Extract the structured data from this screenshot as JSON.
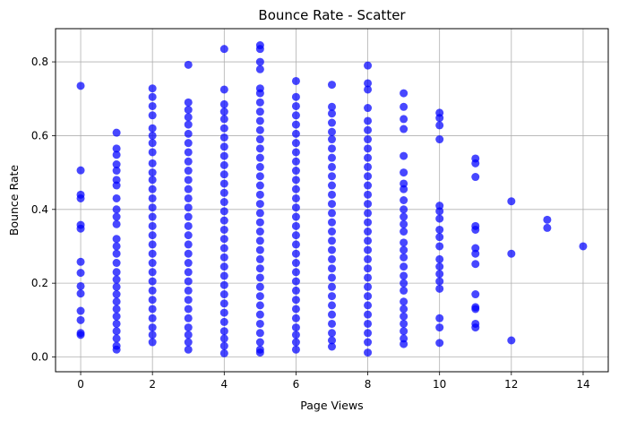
{
  "chart_data": {
    "type": "scatter",
    "title": "Bounce Rate - Scatter",
    "xlabel": "Page Views",
    "ylabel": "Bounce Rate",
    "xlim": [
      -0.7,
      14.7
    ],
    "ylim": [
      -0.04,
      0.89
    ],
    "xticks": [
      0,
      2,
      4,
      6,
      8,
      10,
      12,
      14
    ],
    "yticks": [
      0.0,
      0.2,
      0.4,
      0.6,
      0.8
    ],
    "xtick_labels": [
      "0",
      "2",
      "4",
      "6",
      "8",
      "10",
      "12",
      "14"
    ],
    "ytick_labels": [
      "0.0",
      "0.2",
      "0.4",
      "0.6",
      "0.8"
    ],
    "grid": true,
    "color": "#0000ff",
    "series": [
      {
        "points": [
          [
            0,
            0.735
          ],
          [
            0,
            0.506
          ],
          [
            0,
            0.44
          ],
          [
            0,
            0.43
          ],
          [
            0,
            0.358
          ],
          [
            0,
            0.348
          ],
          [
            0,
            0.258
          ],
          [
            0,
            0.228
          ],
          [
            0,
            0.192
          ],
          [
            0,
            0.172
          ],
          [
            0,
            0.125
          ],
          [
            0,
            0.1
          ],
          [
            0,
            0.065
          ],
          [
            0,
            0.06
          ],
          [
            1,
            0.608
          ],
          [
            1,
            0.565
          ],
          [
            1,
            0.548
          ],
          [
            1,
            0.522
          ],
          [
            1,
            0.505
          ],
          [
            1,
            0.48
          ],
          [
            1,
            0.465
          ],
          [
            1,
            0.43
          ],
          [
            1,
            0.4
          ],
          [
            1,
            0.38
          ],
          [
            1,
            0.36
          ],
          [
            1,
            0.32
          ],
          [
            1,
            0.3
          ],
          [
            1,
            0.28
          ],
          [
            1,
            0.255
          ],
          [
            1,
            0.23
          ],
          [
            1,
            0.21
          ],
          [
            1,
            0.19
          ],
          [
            1,
            0.17
          ],
          [
            1,
            0.15
          ],
          [
            1,
            0.13
          ],
          [
            1,
            0.11
          ],
          [
            1,
            0.09
          ],
          [
            1,
            0.07
          ],
          [
            1,
            0.05
          ],
          [
            1,
            0.03
          ],
          [
            1,
            0.02
          ],
          [
            2,
            0.728
          ],
          [
            2,
            0.705
          ],
          [
            2,
            0.68
          ],
          [
            2,
            0.655
          ],
          [
            2,
            0.62
          ],
          [
            2,
            0.6
          ],
          [
            2,
            0.58
          ],
          [
            2,
            0.555
          ],
          [
            2,
            0.525
          ],
          [
            2,
            0.5
          ],
          [
            2,
            0.48
          ],
          [
            2,
            0.455
          ],
          [
            2,
            0.43
          ],
          [
            2,
            0.405
          ],
          [
            2,
            0.38
          ],
          [
            2,
            0.355
          ],
          [
            2,
            0.33
          ],
          [
            2,
            0.305
          ],
          [
            2,
            0.28
          ],
          [
            2,
            0.255
          ],
          [
            2,
            0.23
          ],
          [
            2,
            0.205
          ],
          [
            2,
            0.18
          ],
          [
            2,
            0.155
          ],
          [
            2,
            0.13
          ],
          [
            2,
            0.105
          ],
          [
            2,
            0.08
          ],
          [
            2,
            0.06
          ],
          [
            2,
            0.04
          ],
          [
            3,
            0.792
          ],
          [
            3,
            0.69
          ],
          [
            3,
            0.67
          ],
          [
            3,
            0.65
          ],
          [
            3,
            0.63
          ],
          [
            3,
            0.605
          ],
          [
            3,
            0.58
          ],
          [
            3,
            0.555
          ],
          [
            3,
            0.53
          ],
          [
            3,
            0.505
          ],
          [
            3,
            0.48
          ],
          [
            3,
            0.455
          ],
          [
            3,
            0.43
          ],
          [
            3,
            0.405
          ],
          [
            3,
            0.38
          ],
          [
            3,
            0.355
          ],
          [
            3,
            0.33
          ],
          [
            3,
            0.305
          ],
          [
            3,
            0.28
          ],
          [
            3,
            0.255
          ],
          [
            3,
            0.23
          ],
          [
            3,
            0.205
          ],
          [
            3,
            0.18
          ],
          [
            3,
            0.155
          ],
          [
            3,
            0.13
          ],
          [
            3,
            0.105
          ],
          [
            3,
            0.08
          ],
          [
            3,
            0.06
          ],
          [
            3,
            0.04
          ],
          [
            3,
            0.02
          ],
          [
            4,
            0.835
          ],
          [
            4,
            0.725
          ],
          [
            4,
            0.685
          ],
          [
            4,
            0.665
          ],
          [
            4,
            0.645
          ],
          [
            4,
            0.62
          ],
          [
            4,
            0.595
          ],
          [
            4,
            0.57
          ],
          [
            4,
            0.545
          ],
          [
            4,
            0.52
          ],
          [
            4,
            0.495
          ],
          [
            4,
            0.47
          ],
          [
            4,
            0.445
          ],
          [
            4,
            0.42
          ],
          [
            4,
            0.395
          ],
          [
            4,
            0.37
          ],
          [
            4,
            0.345
          ],
          [
            4,
            0.32
          ],
          [
            4,
            0.295
          ],
          [
            4,
            0.27
          ],
          [
            4,
            0.245
          ],
          [
            4,
            0.22
          ],
          [
            4,
            0.195
          ],
          [
            4,
            0.17
          ],
          [
            4,
            0.145
          ],
          [
            4,
            0.12
          ],
          [
            4,
            0.095
          ],
          [
            4,
            0.07
          ],
          [
            4,
            0.05
          ],
          [
            4,
            0.03
          ],
          [
            4,
            0.01
          ],
          [
            5,
            0.845
          ],
          [
            5,
            0.835
          ],
          [
            5,
            0.8
          ],
          [
            5,
            0.78
          ],
          [
            5,
            0.728
          ],
          [
            5,
            0.715
          ],
          [
            5,
            0.69
          ],
          [
            5,
            0.665
          ],
          [
            5,
            0.64
          ],
          [
            5,
            0.615
          ],
          [
            5,
            0.59
          ],
          [
            5,
            0.565
          ],
          [
            5,
            0.54
          ],
          [
            5,
            0.515
          ],
          [
            5,
            0.49
          ],
          [
            5,
            0.465
          ],
          [
            5,
            0.44
          ],
          [
            5,
            0.415
          ],
          [
            5,
            0.39
          ],
          [
            5,
            0.365
          ],
          [
            5,
            0.34
          ],
          [
            5,
            0.315
          ],
          [
            5,
            0.29
          ],
          [
            5,
            0.265
          ],
          [
            5,
            0.24
          ],
          [
            5,
            0.215
          ],
          [
            5,
            0.19
          ],
          [
            5,
            0.165
          ],
          [
            5,
            0.14
          ],
          [
            5,
            0.115
          ],
          [
            5,
            0.09
          ],
          [
            5,
            0.065
          ],
          [
            5,
            0.04
          ],
          [
            5,
            0.02
          ],
          [
            5,
            0.012
          ],
          [
            6,
            0.748
          ],
          [
            6,
            0.705
          ],
          [
            6,
            0.68
          ],
          [
            6,
            0.655
          ],
          [
            6,
            0.63
          ],
          [
            6,
            0.605
          ],
          [
            6,
            0.58
          ],
          [
            6,
            0.555
          ],
          [
            6,
            0.53
          ],
          [
            6,
            0.505
          ],
          [
            6,
            0.48
          ],
          [
            6,
            0.455
          ],
          [
            6,
            0.43
          ],
          [
            6,
            0.405
          ],
          [
            6,
            0.38
          ],
          [
            6,
            0.355
          ],
          [
            6,
            0.33
          ],
          [
            6,
            0.305
          ],
          [
            6,
            0.28
          ],
          [
            6,
            0.255
          ],
          [
            6,
            0.23
          ],
          [
            6,
            0.205
          ],
          [
            6,
            0.18
          ],
          [
            6,
            0.155
          ],
          [
            6,
            0.13
          ],
          [
            6,
            0.105
          ],
          [
            6,
            0.08
          ],
          [
            6,
            0.06
          ],
          [
            6,
            0.04
          ],
          [
            6,
            0.02
          ],
          [
            7,
            0.738
          ],
          [
            7,
            0.678
          ],
          [
            7,
            0.66
          ],
          [
            7,
            0.635
          ],
          [
            7,
            0.61
          ],
          [
            7,
            0.59
          ],
          [
            7,
            0.565
          ],
          [
            7,
            0.54
          ],
          [
            7,
            0.515
          ],
          [
            7,
            0.49
          ],
          [
            7,
            0.465
          ],
          [
            7,
            0.44
          ],
          [
            7,
            0.415
          ],
          [
            7,
            0.39
          ],
          [
            7,
            0.365
          ],
          [
            7,
            0.34
          ],
          [
            7,
            0.315
          ],
          [
            7,
            0.29
          ],
          [
            7,
            0.265
          ],
          [
            7,
            0.24
          ],
          [
            7,
            0.215
          ],
          [
            7,
            0.19
          ],
          [
            7,
            0.165
          ],
          [
            7,
            0.14
          ],
          [
            7,
            0.115
          ],
          [
            7,
            0.09
          ],
          [
            7,
            0.065
          ],
          [
            7,
            0.045
          ],
          [
            7,
            0.028
          ],
          [
            8,
            0.79
          ],
          [
            8,
            0.742
          ],
          [
            8,
            0.725
          ],
          [
            8,
            0.675
          ],
          [
            8,
            0.64
          ],
          [
            8,
            0.615
          ],
          [
            8,
            0.59
          ],
          [
            8,
            0.565
          ],
          [
            8,
            0.54
          ],
          [
            8,
            0.515
          ],
          [
            8,
            0.49
          ],
          [
            8,
            0.465
          ],
          [
            8,
            0.44
          ],
          [
            8,
            0.415
          ],
          [
            8,
            0.39
          ],
          [
            8,
            0.365
          ],
          [
            8,
            0.34
          ],
          [
            8,
            0.315
          ],
          [
            8,
            0.29
          ],
          [
            8,
            0.265
          ],
          [
            8,
            0.24
          ],
          [
            8,
            0.215
          ],
          [
            8,
            0.19
          ],
          [
            8,
            0.165
          ],
          [
            8,
            0.14
          ],
          [
            8,
            0.115
          ],
          [
            8,
            0.09
          ],
          [
            8,
            0.065
          ],
          [
            8,
            0.04
          ],
          [
            8,
            0.012
          ],
          [
            9,
            0.715
          ],
          [
            9,
            0.678
          ],
          [
            9,
            0.645
          ],
          [
            9,
            0.618
          ],
          [
            9,
            0.545
          ],
          [
            9,
            0.5
          ],
          [
            9,
            0.47
          ],
          [
            9,
            0.455
          ],
          [
            9,
            0.425
          ],
          [
            9,
            0.4
          ],
          [
            9,
            0.38
          ],
          [
            9,
            0.36
          ],
          [
            9,
            0.34
          ],
          [
            9,
            0.31
          ],
          [
            9,
            0.29
          ],
          [
            9,
            0.27
          ],
          [
            9,
            0.245
          ],
          [
            9,
            0.22
          ],
          [
            9,
            0.2
          ],
          [
            9,
            0.18
          ],
          [
            9,
            0.15
          ],
          [
            9,
            0.13
          ],
          [
            9,
            0.11
          ],
          [
            9,
            0.09
          ],
          [
            9,
            0.07
          ],
          [
            9,
            0.05
          ],
          [
            9,
            0.035
          ],
          [
            10,
            0.662
          ],
          [
            10,
            0.648
          ],
          [
            10,
            0.628
          ],
          [
            10,
            0.59
          ],
          [
            10,
            0.41
          ],
          [
            10,
            0.395
          ],
          [
            10,
            0.375
          ],
          [
            10,
            0.345
          ],
          [
            10,
            0.325
          ],
          [
            10,
            0.3
          ],
          [
            10,
            0.265
          ],
          [
            10,
            0.245
          ],
          [
            10,
            0.225
          ],
          [
            10,
            0.205
          ],
          [
            10,
            0.185
          ],
          [
            10,
            0.105
          ],
          [
            10,
            0.08
          ],
          [
            10,
            0.038
          ],
          [
            11,
            0.538
          ],
          [
            11,
            0.525
          ],
          [
            11,
            0.488
          ],
          [
            11,
            0.355
          ],
          [
            11,
            0.345
          ],
          [
            11,
            0.295
          ],
          [
            11,
            0.28
          ],
          [
            11,
            0.252
          ],
          [
            11,
            0.17
          ],
          [
            11,
            0.135
          ],
          [
            11,
            0.13
          ],
          [
            11,
            0.09
          ],
          [
            11,
            0.08
          ],
          [
            12,
            0.422
          ],
          [
            12,
            0.28
          ],
          [
            12,
            0.045
          ],
          [
            13,
            0.372
          ],
          [
            13,
            0.35
          ],
          [
            14,
            0.3
          ]
        ]
      }
    ]
  }
}
